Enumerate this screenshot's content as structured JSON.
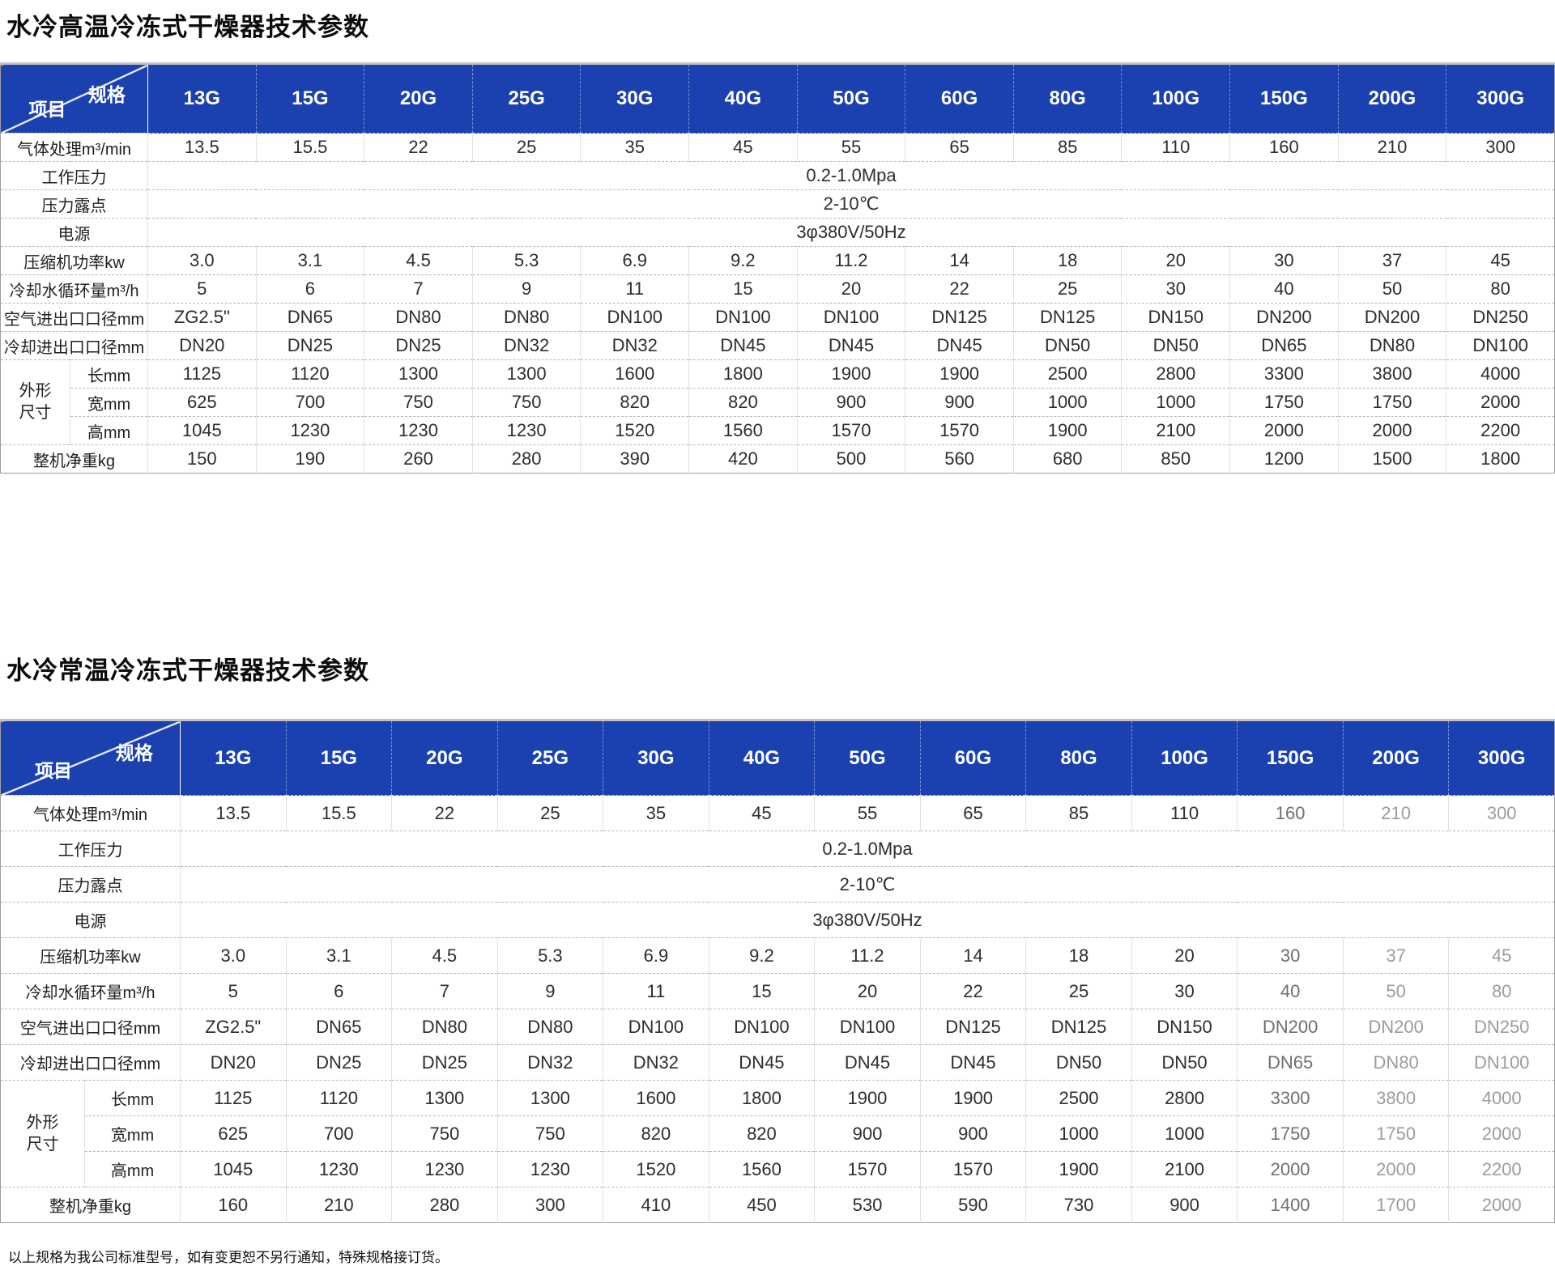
{
  "corner": {
    "spec": "规格",
    "item": "项目"
  },
  "columns": [
    "13G",
    "15G",
    "20G",
    "25G",
    "30G",
    "40G",
    "50G",
    "60G",
    "80G",
    "100G",
    "150G",
    "200G",
    "300G"
  ],
  "colors": {
    "header_blue": "#1b40b0",
    "header_text": "#ffffff"
  },
  "footer": {
    "note": "以上规格为我公司标准型号，如有变更恕不另行通知，特殊规格接订货。"
  },
  "tables": [
    {
      "title": "水冷高温冷冻式干燥器技术参数",
      "faded": false,
      "rows": [
        {
          "type": "values",
          "label": "气体处理m³/min",
          "values": [
            "13.5",
            "15.5",
            "22",
            "25",
            "35",
            "45",
            "55",
            "65",
            "85",
            "110",
            "160",
            "210",
            "300"
          ]
        },
        {
          "type": "span",
          "label": "工作压力",
          "value": "0.2-1.0Mpa"
        },
        {
          "type": "span",
          "label": "压力露点",
          "value": "2-10℃"
        },
        {
          "type": "span",
          "label": "电源",
          "value": "3φ380V/50Hz"
        },
        {
          "type": "values",
          "label": "压缩机功率kw",
          "values": [
            "3.0",
            "3.1",
            "4.5",
            "5.3",
            "6.9",
            "9.2",
            "11.2",
            "14",
            "18",
            "20",
            "30",
            "37",
            "45"
          ]
        },
        {
          "type": "values",
          "label": "冷却水循环量m³/h",
          "values": [
            "5",
            "6",
            "7",
            "9",
            "11",
            "15",
            "20",
            "22",
            "25",
            "30",
            "40",
            "50",
            "80"
          ]
        },
        {
          "type": "values",
          "label": "空气进出口口径mm",
          "values": [
            "ZG2.5\"",
            "DN65",
            "DN80",
            "DN80",
            "DN100",
            "DN100",
            "DN100",
            "DN125",
            "DN125",
            "DN150",
            "DN200",
            "DN200",
            "DN250"
          ]
        },
        {
          "type": "values",
          "label": "冷却进出口口径mm",
          "values": [
            "DN20",
            "DN25",
            "DN25",
            "DN32",
            "DN32",
            "DN45",
            "DN45",
            "DN45",
            "DN50",
            "DN50",
            "DN65",
            "DN80",
            "DN100"
          ]
        },
        {
          "type": "values",
          "group": "外形\n尺寸",
          "group_rowspan": 3,
          "label": "长mm",
          "values": [
            "1125",
            "1120",
            "1300",
            "1300",
            "1600",
            "1800",
            "1900",
            "1900",
            "2500",
            "2800",
            "3300",
            "3800",
            "4000"
          ]
        },
        {
          "type": "values",
          "sub": true,
          "label": "宽mm",
          "values": [
            "625",
            "700",
            "750",
            "750",
            "820",
            "820",
            "900",
            "900",
            "1000",
            "1000",
            "1750",
            "1750",
            "2000"
          ]
        },
        {
          "type": "values",
          "sub": true,
          "label": "高mm",
          "values": [
            "1045",
            "1230",
            "1230",
            "1230",
            "1520",
            "1560",
            "1570",
            "1570",
            "1900",
            "2100",
            "2000",
            "2000",
            "2200"
          ]
        },
        {
          "type": "values",
          "label": "整机净重kg",
          "values": [
            "150",
            "190",
            "260",
            "280",
            "390",
            "420",
            "500",
            "560",
            "680",
            "850",
            "1200",
            "1500",
            "1800"
          ]
        }
      ]
    },
    {
      "title": "水冷常温冷冻式干燥器技术参数",
      "faded": true,
      "rows": [
        {
          "type": "values",
          "label": "气体处理m³/min",
          "values": [
            "13.5",
            "15.5",
            "22",
            "25",
            "35",
            "45",
            "55",
            "65",
            "85",
            "110",
            "160",
            "210",
            "300"
          ]
        },
        {
          "type": "span",
          "label": "工作压力",
          "value": "0.2-1.0Mpa"
        },
        {
          "type": "span",
          "label": "压力露点",
          "value": "2-10℃"
        },
        {
          "type": "span",
          "label": "电源",
          "value": "3φ380V/50Hz"
        },
        {
          "type": "values",
          "label": "压缩机功率kw",
          "values": [
            "3.0",
            "3.1",
            "4.5",
            "5.3",
            "6.9",
            "9.2",
            "11.2",
            "14",
            "18",
            "20",
            "30",
            "37",
            "45"
          ]
        },
        {
          "type": "values",
          "label": "冷却水循环量m³/h",
          "values": [
            "5",
            "6",
            "7",
            "9",
            "11",
            "15",
            "20",
            "22",
            "25",
            "30",
            "40",
            "50",
            "80"
          ]
        },
        {
          "type": "values",
          "label": "空气进出口口径mm",
          "values": [
            "ZG2.5\"",
            "DN65",
            "DN80",
            "DN80",
            "DN100",
            "DN100",
            "DN100",
            "DN125",
            "DN125",
            "DN150",
            "DN200",
            "DN200",
            "DN250"
          ]
        },
        {
          "type": "values",
          "label": "冷却进出口口径mm",
          "values": [
            "DN20",
            "DN25",
            "DN25",
            "DN32",
            "DN32",
            "DN45",
            "DN45",
            "DN45",
            "DN50",
            "DN50",
            "DN65",
            "DN80",
            "DN100"
          ]
        },
        {
          "type": "values",
          "group": "外形\n尺寸",
          "group_rowspan": 3,
          "label": "长mm",
          "values": [
            "1125",
            "1120",
            "1300",
            "1300",
            "1600",
            "1800",
            "1900",
            "1900",
            "2500",
            "2800",
            "3300",
            "3800",
            "4000"
          ]
        },
        {
          "type": "values",
          "sub": true,
          "label": "宽mm",
          "values": [
            "625",
            "700",
            "750",
            "750",
            "820",
            "820",
            "900",
            "900",
            "1000",
            "1000",
            "1750",
            "1750",
            "2000"
          ]
        },
        {
          "type": "values",
          "sub": true,
          "label": "高mm",
          "values": [
            "1045",
            "1230",
            "1230",
            "1230",
            "1520",
            "1560",
            "1570",
            "1570",
            "1900",
            "2100",
            "2000",
            "2000",
            "2200"
          ]
        },
        {
          "type": "values",
          "label": "整机净重kg",
          "values": [
            "160",
            "210",
            "280",
            "300",
            "410",
            "450",
            "530",
            "590",
            "730",
            "900",
            "1400",
            "1700",
            "2000"
          ]
        }
      ]
    }
  ]
}
